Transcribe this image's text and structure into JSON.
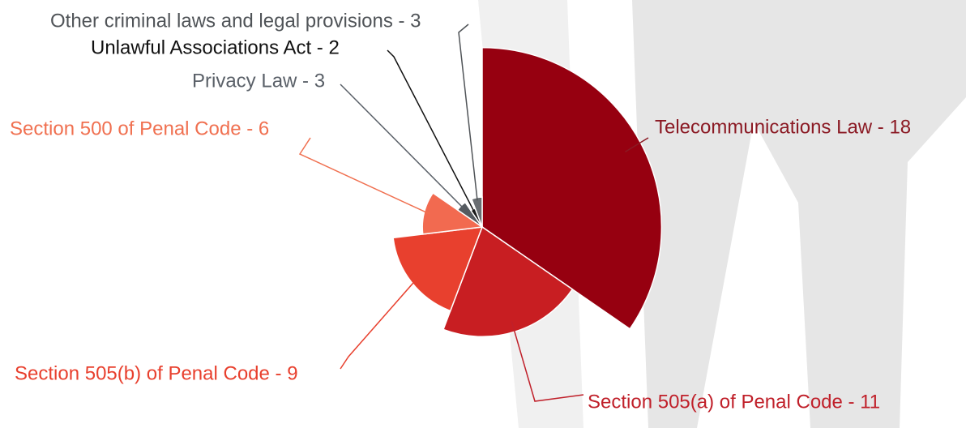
{
  "chart_data": {
    "type": "pie",
    "categories": [
      "Telecommunications Law - 18",
      "Section 505(a) of Penal Code - 11",
      "Section 505(b) of Penal Code - 9",
      "Section 500 of Penal Code - 6",
      "Privacy Law - 3",
      "Unlawful Associations Act - 2",
      "Other criminal laws and legal provisions - 3"
    ],
    "values": [
      18,
      11,
      9,
      6,
      3,
      2,
      3
    ],
    "colors": [
      "#960010",
      "#c81e22",
      "#e8402e",
      "#f26a50",
      "#555a60",
      "#1a1a1a",
      "#6a6e72"
    ],
    "label_colors": [
      "#8b1a24",
      "#c0202a",
      "#e8402e",
      "#f07050",
      "#5a6068",
      "#111111",
      "#505458"
    ]
  }
}
